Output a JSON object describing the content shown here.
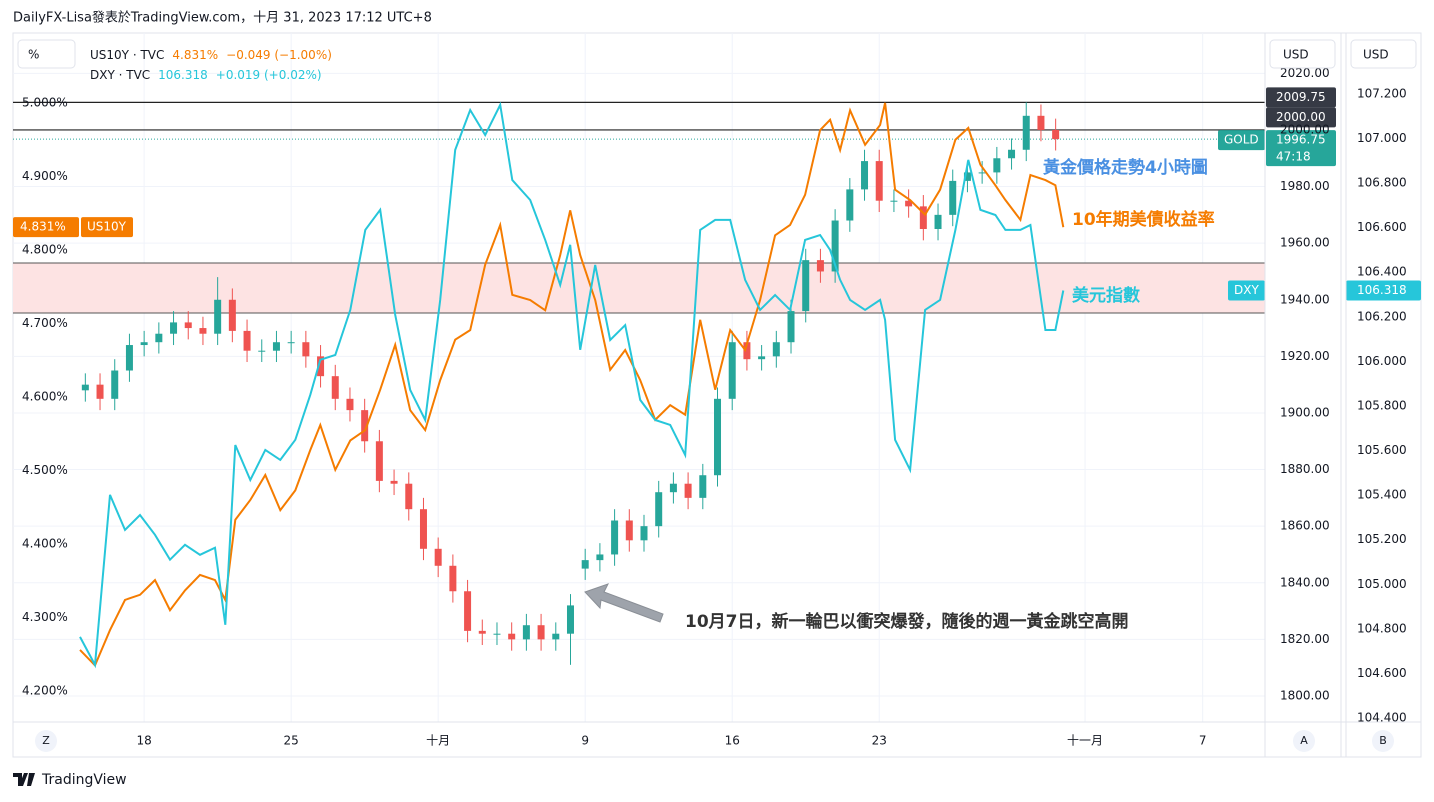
{
  "header": "DailyFX-Lisa發表於TradingView.com，十月 31, 2023 17:12 UTC+8",
  "chart_data": {
    "type": "candlestick",
    "name": "GOLD",
    "x": [
      -2,
      -1.5,
      -1,
      -0.5,
      0,
      0.5,
      1,
      1.5,
      2,
      2.5,
      3,
      3.5,
      4,
      4.5,
      5,
      5.5,
      6,
      6.5,
      7,
      7.5,
      8,
      8.5,
      9,
      9.5,
      10,
      10.5,
      11,
      11.5,
      12,
      12.5,
      13,
      13.5,
      14,
      14.5,
      15,
      15.5,
      16,
      16.5,
      17,
      17.5,
      18,
      18.5,
      19,
      19.5,
      20,
      20.5,
      21,
      21.5,
      22,
      22.5,
      23,
      23.5,
      24,
      24.5,
      25,
      25.5,
      26,
      26.5,
      27,
      27.5,
      28,
      28.5,
      29,
      29.5,
      30,
      30.5,
      31
    ],
    "open": [
      1908,
      1910,
      1905,
      1915,
      1924,
      1925,
      1928,
      1932,
      1930,
      1928,
      1940,
      1929,
      1922,
      1922,
      1925,
      1925,
      1920,
      1913,
      1905,
      1901,
      1890,
      1876,
      1875,
      1866,
      1852,
      1846,
      1837,
      1823,
      1822,
      1822,
      1820,
      1825,
      1820,
      1822,
      1845,
      1848,
      1850,
      1862,
      1855,
      1860,
      1872,
      1875,
      1870,
      1878,
      1905,
      1925,
      1919,
      1920,
      1925,
      1936,
      1954,
      1950,
      1968,
      1979,
      1989,
      1975,
      1975,
      1973,
      1965,
      1970,
      1982,
      1985,
      1985,
      1990,
      1993,
      2005,
      2000
    ],
    "high": [
      1914,
      1914,
      1919,
      1928,
      1929,
      1932,
      1936,
      1936,
      1934,
      1948,
      1944,
      1933,
      1926,
      1929,
      1929,
      1929,
      1924,
      1917,
      1909,
      1905,
      1894,
      1880,
      1879,
      1870,
      1856,
      1850,
      1841,
      1827,
      1826,
      1826,
      1829,
      1829,
      1826,
      1836,
      1852,
      1854,
      1866,
      1866,
      1864,
      1876,
      1879,
      1879,
      1882,
      1909,
      1929,
      1929,
      1924,
      1929,
      1940,
      1958,
      1958,
      1972,
      1983,
      1993,
      1993,
      1979,
      1979,
      1977,
      1974,
      1986,
      1989,
      1989,
      1994,
      1997,
      2009.75,
      2009,
      2004
    ],
    "low": [
      1904,
      1901,
      1901,
      1911,
      1920,
      1921,
      1924,
      1926,
      1924,
      1924,
      1925,
      1918,
      1918,
      1918,
      1921,
      1916,
      1909,
      1901,
      1897,
      1886,
      1872,
      1871,
      1862,
      1848,
      1842,
      1833,
      1819,
      1818,
      1818,
      1816,
      1816,
      1816,
      1816,
      1811,
      1841,
      1844,
      1846,
      1851,
      1851,
      1856,
      1868,
      1866,
      1866,
      1874,
      1901,
      1915,
      1915,
      1916,
      1921,
      1932,
      1946,
      1946,
      1964,
      1975,
      1971,
      1971,
      1969,
      1961,
      1961,
      1966,
      1978,
      1981,
      1981,
      1986,
      1989,
      1996,
      1992.75
    ],
    "close": [
      1910,
      1905,
      1915,
      1924,
      1925,
      1928,
      1932,
      1930,
      1928,
      1940,
      1929,
      1922,
      1922,
      1925,
      1925,
      1920,
      1913,
      1905,
      1901,
      1890,
      1876,
      1875,
      1866,
      1852,
      1846,
      1837,
      1823,
      1822,
      1822,
      1820,
      1825,
      1820,
      1822,
      1832,
      1848,
      1850,
      1862,
      1855,
      1860,
      1872,
      1875,
      1870,
      1878,
      1905,
      1925,
      1919,
      1920,
      1925,
      1936,
      1954,
      1950,
      1968,
      1979,
      1989,
      1975,
      1975,
      1973,
      1965,
      1970,
      1982,
      1985,
      1985,
      1990,
      1993,
      2005,
      2000,
      1996.75
    ],
    "up_color": "#26a69a",
    "down_color": "#ef5350",
    "series": [
      {
        "name": "US10Y",
        "color": "#f57c00",
        "axis": "y",
        "x": [
          -2.18,
          -1.67,
          -1.16,
          -0.65,
          -0.14,
          0.37,
          0.88,
          1.39,
          1.9,
          2.41,
          2.76,
          3.1,
          3.61,
          4.12,
          4.63,
          5.14,
          5.65,
          5.99,
          6.5,
          7.01,
          7.52,
          8.03,
          8.54,
          9.05,
          9.56,
          10.07,
          10.58,
          11.09,
          11.6,
          12.11,
          12.52,
          13.13,
          13.64,
          14.15,
          14.49,
          14.83,
          15.34,
          15.85,
          16.36,
          16.87,
          17.38,
          17.89,
          18.4,
          18.91,
          19.42,
          19.93,
          20.44,
          20.95,
          21.46,
          21.97,
          22.48,
          22.99,
          23.33,
          23.67,
          24.01,
          24.52,
          25.03,
          25.2,
          25.54,
          26.05,
          26.56,
          27.07,
          27.59,
          28.03,
          28.44,
          28.95,
          29.29,
          29.8,
          30.14,
          30.65,
          30.99,
          31.26
        ],
        "values": [
          4.256,
          4.235,
          4.283,
          4.324,
          4.331,
          4.351,
          4.31,
          4.337,
          4.358,
          4.351,
          4.324,
          4.433,
          4.46,
          4.494,
          4.446,
          4.473,
          4.528,
          4.562,
          4.501,
          4.541,
          4.555,
          4.61,
          4.671,
          4.582,
          4.555,
          4.623,
          4.678,
          4.691,
          4.78,
          4.834,
          4.739,
          4.732,
          4.718,
          4.793,
          4.854,
          4.793,
          4.732,
          4.637,
          4.664,
          4.623,
          4.569,
          4.589,
          4.576,
          4.705,
          4.61,
          4.691,
          4.664,
          4.732,
          4.82,
          4.834,
          4.875,
          4.963,
          4.977,
          4.936,
          4.99,
          4.943,
          4.97,
          5.0,
          4.882,
          4.868,
          4.848,
          4.882,
          4.95,
          4.966,
          4.916,
          4.888,
          4.868,
          4.841,
          4.902,
          4.895,
          4.888,
          4.831
        ]
      },
      {
        "name": "DXY",
        "color": "#26c6da",
        "axis": "y3",
        "x": [
          -2.18,
          -1.67,
          -1.16,
          -0.65,
          -0.14,
          0.37,
          0.88,
          1.39,
          1.9,
          2.41,
          2.76,
          3.1,
          3.61,
          4.12,
          4.63,
          5.14,
          5.65,
          5.99,
          6.5,
          7.01,
          7.52,
          8.03,
          8.54,
          9.05,
          9.56,
          10.07,
          10.58,
          11.09,
          11.6,
          12.11,
          12.52,
          13.13,
          13.64,
          14.15,
          14.49,
          14.83,
          15.34,
          15.85,
          16.36,
          16.87,
          17.38,
          17.89,
          18.4,
          18.91,
          19.42,
          19.93,
          20.44,
          20.95,
          21.46,
          21.97,
          22.48,
          22.99,
          23.33,
          23.67,
          24.01,
          24.52,
          25.03,
          25.2,
          25.54,
          26.05,
          26.56,
          27.07,
          27.59,
          28.03,
          28.44,
          28.95,
          29.29,
          29.8,
          30.14,
          30.65,
          30.99,
          31.26
        ],
        "values": [
          104.764,
          104.638,
          105.401,
          105.244,
          105.311,
          105.222,
          105.11,
          105.177,
          105.132,
          105.164,
          104.818,
          105.625,
          105.468,
          105.603,
          105.558,
          105.648,
          105.85,
          106.007,
          106.029,
          106.231,
          106.59,
          106.68,
          106.209,
          105.872,
          105.737,
          106.276,
          106.949,
          107.128,
          107.016,
          107.151,
          106.814,
          106.724,
          106.545,
          106.343,
          106.523,
          106.052,
          106.433,
          106.096,
          106.163,
          105.827,
          105.737,
          105.715,
          105.58,
          106.59,
          106.635,
          106.635,
          106.366,
          106.231,
          106.298,
          106.231,
          106.545,
          106.567,
          106.5,
          106.366,
          106.276,
          106.231,
          106.276,
          106.186,
          105.648,
          105.513,
          106.231,
          106.276,
          106.59,
          106.904,
          106.68,
          106.657,
          106.59,
          106.59,
          106.612,
          106.141,
          106.141,
          106.318
        ]
      }
    ],
    "xlim": [
      -4.46,
      38.12
    ],
    "xticks": [
      {
        "value": 0,
        "label": "18"
      },
      {
        "value": 5,
        "label": "25"
      },
      {
        "value": 10,
        "label": "十月"
      },
      {
        "value": 15,
        "label": "9"
      },
      {
        "value": 20,
        "label": "16"
      },
      {
        "value": 25,
        "label": "23"
      },
      {
        "value": 32,
        "label": "十一月"
      },
      {
        "value": 36,
        "label": "7"
      }
    ],
    "ylim": [
      4.158,
      5.091
    ],
    "yticks": [
      {
        "value": 4.2,
        "label": "4.200%"
      },
      {
        "value": 4.3,
        "label": "4.300%"
      },
      {
        "value": 4.4,
        "label": "4.400%"
      },
      {
        "value": 4.5,
        "label": "4.500%"
      },
      {
        "value": 4.6,
        "label": "4.600%"
      },
      {
        "value": 4.7,
        "label": "4.700%"
      },
      {
        "value": 4.8,
        "label": "4.800%"
      },
      {
        "value": 4.9,
        "label": "4.900%"
      },
      {
        "value": 5.0,
        "label": "5.000%"
      }
    ],
    "y_unit": "%",
    "y2lim": [
      1790.8,
      2033.2
    ],
    "y2ticks": [
      {
        "value": 1800,
        "label": "1800.00"
      },
      {
        "value": 1820,
        "label": "1820.00"
      },
      {
        "value": 1840,
        "label": "1840.00"
      },
      {
        "value": 1860,
        "label": "1860.00"
      },
      {
        "value": 1880,
        "label": "1880.00"
      },
      {
        "value": 1900,
        "label": "1900.00"
      },
      {
        "value": 1920,
        "label": "1920.00"
      },
      {
        "value": 1940,
        "label": "1940.00"
      },
      {
        "value": 1960,
        "label": "1960.00"
      },
      {
        "value": 1980,
        "label": "1980.00"
      },
      {
        "value": 2000,
        "label": "2000.00"
      },
      {
        "value": 2020,
        "label": "2020.00"
      }
    ],
    "y2_unit": "USD",
    "y3lim": [
      104.382,
      107.46
    ],
    "y3ticks": [
      {
        "value": 104.4,
        "label": "104.400"
      },
      {
        "value": 104.6,
        "label": "104.600"
      },
      {
        "value": 104.8,
        "label": "104.800"
      },
      {
        "value": 105.0,
        "label": "105.000"
      },
      {
        "value": 105.2,
        "label": "105.200"
      },
      {
        "value": 105.4,
        "label": "105.400"
      },
      {
        "value": 105.6,
        "label": "105.600"
      },
      {
        "value": 105.8,
        "label": "105.800"
      },
      {
        "value": 106.0,
        "label": "106.000"
      },
      {
        "value": 106.2,
        "label": "106.200"
      },
      {
        "value": 106.4,
        "label": "106.400"
      },
      {
        "value": 106.6,
        "label": "106.600"
      },
      {
        "value": 106.8,
        "label": "106.800"
      },
      {
        "value": 107.0,
        "label": "107.000"
      },
      {
        "value": 107.2,
        "label": "107.200"
      }
    ],
    "y3_unit": "USD",
    "grid": true,
    "hlines": [
      2009.75,
      {
        "value": 2000,
        "label": "2000.00"
      }
    ],
    "zone": [
      1935.3,
      1953
    ],
    "zone_color": "#fde3e3",
    "countdown": "47:18",
    "legend": [
      {
        "label": "US10Y · TVC",
        "last": "4.831%",
        "change": "−0.049 (−1.00%)"
      },
      {
        "label": "DXY · TVC",
        "change": "+0.019 (+0.02%)"
      }
    ],
    "annotations": [
      "黃金價格走勢4小時圖",
      "10年期美債收益率",
      "美元指數",
      "10月7日，新一輪巴以衝突爆發，隨後的週一黃金跳空高開"
    ],
    "axis_buttons": [
      "Z",
      "A",
      "B"
    ]
  },
  "footer": "TradingView"
}
